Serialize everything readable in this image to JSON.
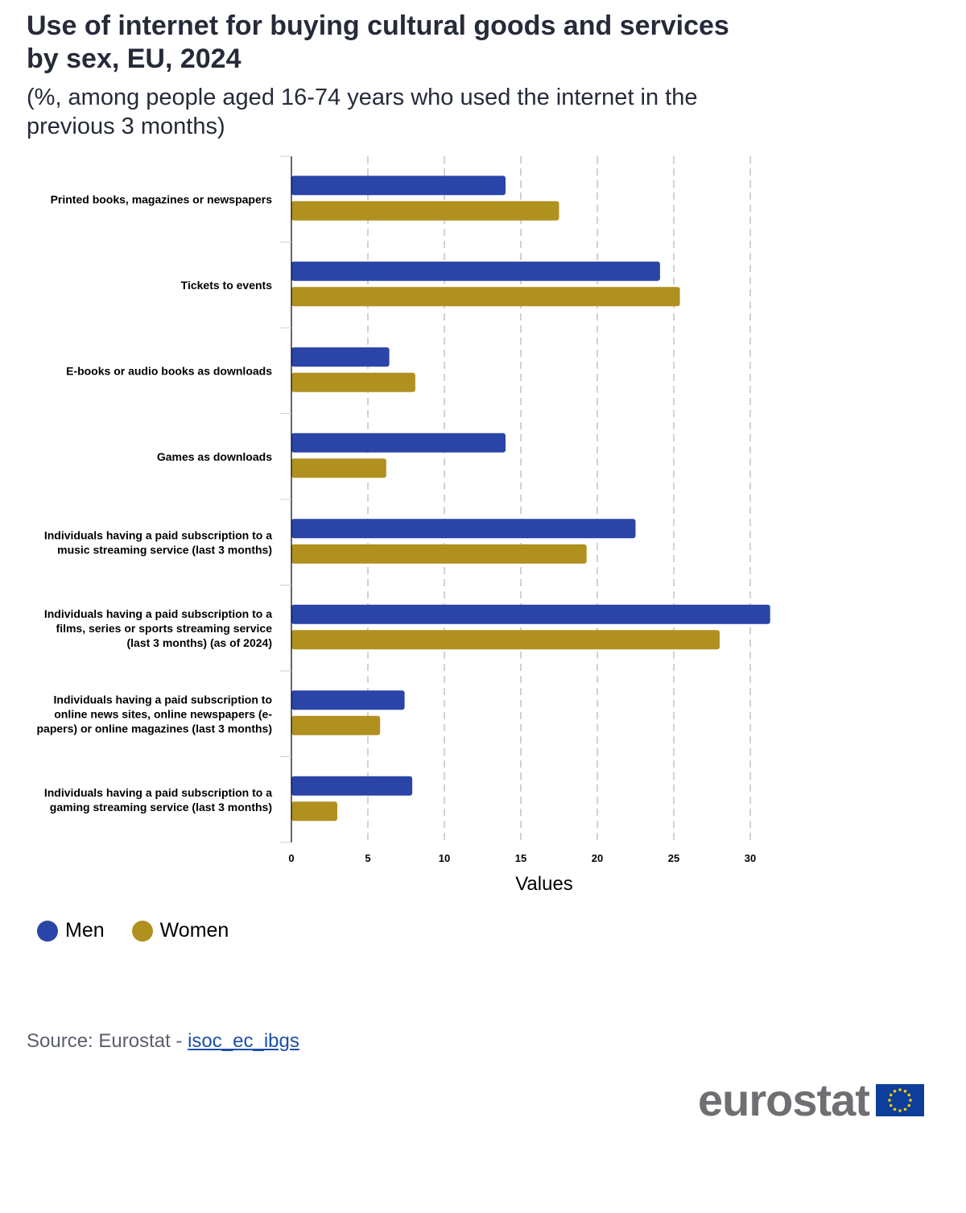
{
  "title": "Use of internet for buying cultural goods and services by sex, EU, 2024",
  "subtitle": "(%, among people aged 16-74 years who used the internet in the previous 3 months)",
  "colors": {
    "men": "#2a44a8",
    "women": "#b09120",
    "grid": "#b5b5b5",
    "axis": "#000000"
  },
  "chart_data": {
    "type": "bar",
    "orientation": "horizontal",
    "categories": [
      [
        "Printed books, magazines or newspapers"
      ],
      [
        "Tickets to events"
      ],
      [
        "E-books or audio books as downloads"
      ],
      [
        "Games as downloads"
      ],
      [
        "Individuals having a paid subscription to a",
        "music streaming service (last 3 months)"
      ],
      [
        "Individuals having a paid subscription to a",
        "films, series or sports streaming service",
        "(last 3 months) (as of 2024)"
      ],
      [
        "Individuals having a paid subscription to",
        "online news sites, online newspapers (e-",
        "papers) or online magazines (last 3 months)"
      ],
      [
        "Individuals having a paid subscription to a",
        "gaming streaming service (last 3 months)"
      ]
    ],
    "series": [
      {
        "name": "Men",
        "values": [
          14.0,
          24.1,
          6.4,
          14.0,
          22.5,
          31.3,
          7.4,
          7.9
        ]
      },
      {
        "name": "Women",
        "values": [
          17.5,
          25.4,
          8.1,
          6.2,
          19.3,
          28.0,
          5.8,
          3.0
        ]
      }
    ],
    "xlabel": "Values",
    "xlim": [
      0,
      31.5
    ],
    "xticks": [
      0,
      5,
      10,
      15,
      20,
      25,
      30
    ],
    "grid": "vertical dashed",
    "legend_position": "bottom-left"
  },
  "legend": [
    {
      "label": "Men",
      "color": "#2a44a8"
    },
    {
      "label": "Women",
      "color": "#b09120"
    }
  ],
  "source": {
    "prefix": "Source: Eurostat - ",
    "link_text": "isoc_ec_ibgs"
  },
  "logo": {
    "text": "eurostat",
    "flag_icon": "eu-flag-icon"
  }
}
